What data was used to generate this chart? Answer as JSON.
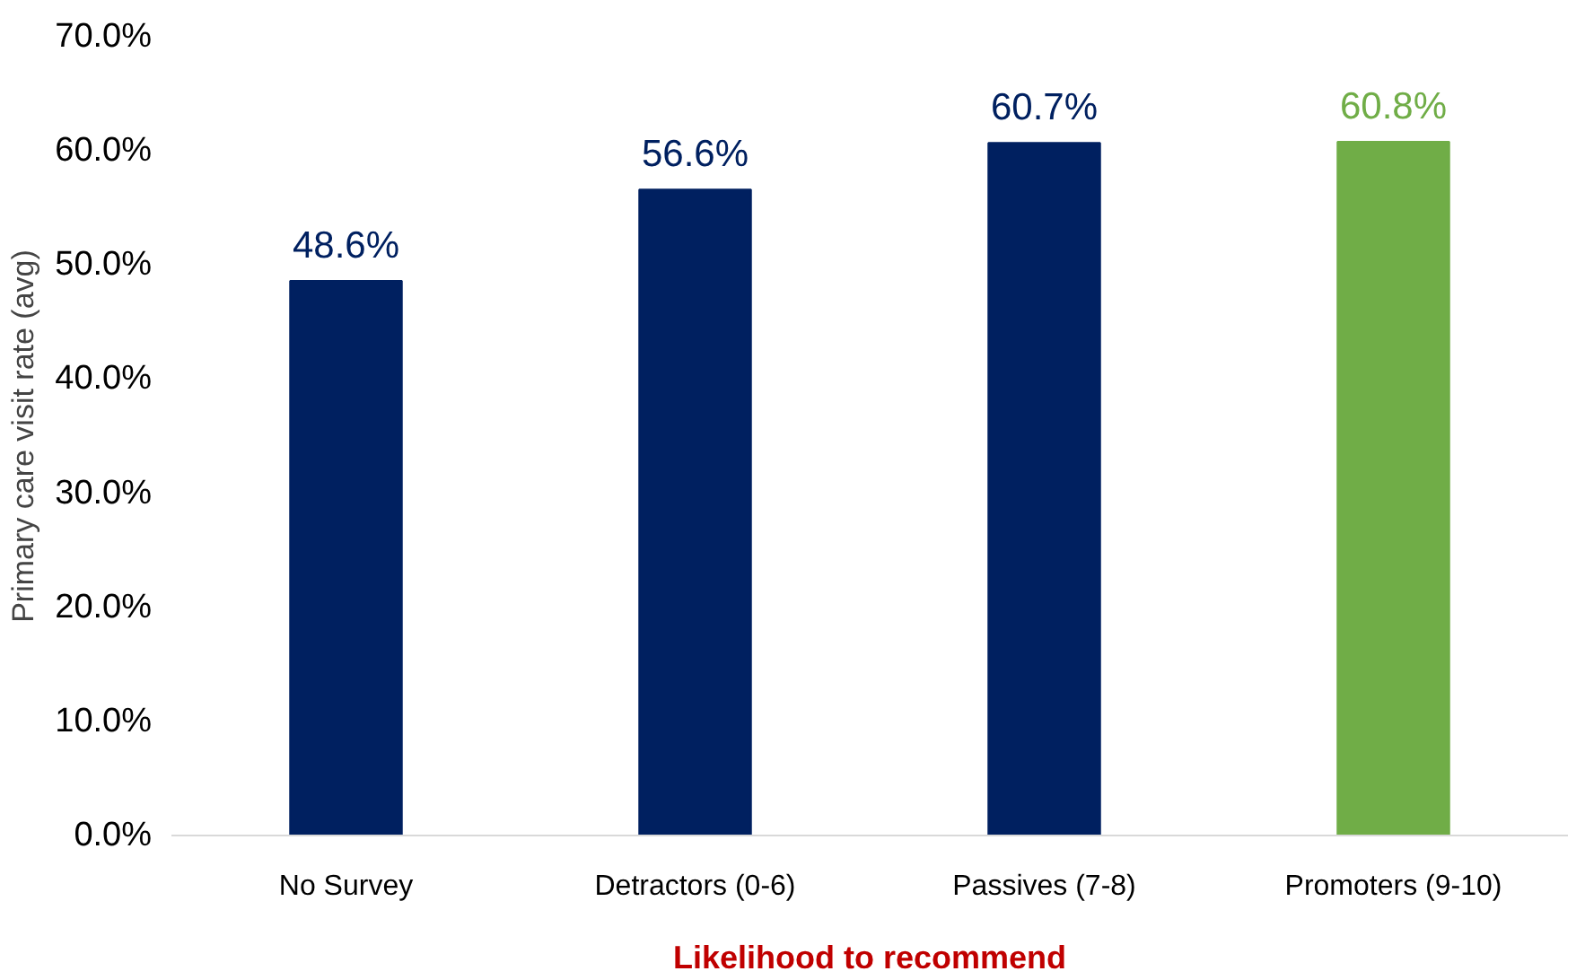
{
  "chart_data": {
    "type": "bar",
    "xlabel": "Likelihood to recommend",
    "ylabel": "Primary care visit rate (avg)",
    "categories": [
      "No Survey",
      "Detractors (0-6)",
      "Passives (7-8)",
      "Promoters (9-10)"
    ],
    "values": [
      48.6,
      56.6,
      60.7,
      60.8
    ],
    "colors": [
      "#002060",
      "#002060",
      "#002060",
      "#70ad47"
    ],
    "value_labels": [
      "48.6%",
      "56.6%",
      "60.7%",
      "60.8%"
    ],
    "ylim": [
      0,
      70
    ],
    "yticks": [
      {
        "value": 0,
        "label": "0.0%"
      },
      {
        "value": 10,
        "label": "10.0%"
      },
      {
        "value": 20,
        "label": "20.0%"
      },
      {
        "value": 30,
        "label": "30.0%"
      },
      {
        "value": 40,
        "label": "40.0%"
      },
      {
        "value": 50,
        "label": "50.0%"
      },
      {
        "value": 60,
        "label": "60.0%"
      },
      {
        "value": 70,
        "label": "70.0%"
      }
    ],
    "grid": false
  }
}
